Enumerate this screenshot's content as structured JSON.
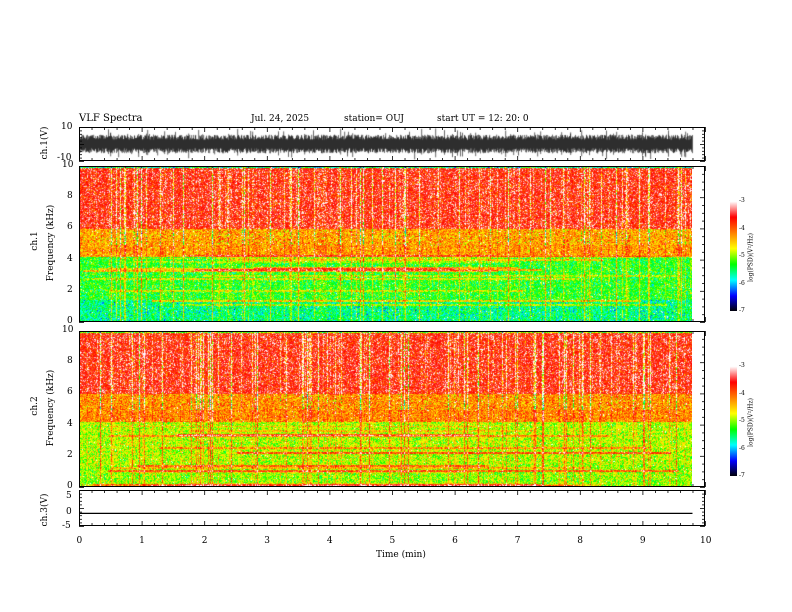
{
  "header": {
    "title": "VLF Spectra",
    "date": "Jul. 24, 2025",
    "station": "station= OUJ",
    "start": "start UT = 12: 20: 0"
  },
  "chart_data": [
    {
      "type": "line",
      "panel": "ch1-waveform",
      "ylabel": "ch.1(V)",
      "ylim": [
        -10,
        10
      ],
      "yticks": [
        "10",
        "-10"
      ],
      "xlim": [
        0,
        9.8
      ],
      "description_values": {
        "baseline": 0,
        "amplitude_range": [
          -9,
          9
        ]
      }
    },
    {
      "type": "heatmap",
      "panel": "ch1-spectrogram",
      "ylabel_top": "ch.1",
      "ylabel": "Frequency (kHz)",
      "ylim": [
        0,
        10
      ],
      "yticks": [
        "0",
        "2",
        "4",
        "6",
        "8",
        "10"
      ],
      "xlim": [
        0,
        9.8
      ],
      "colorbar": {
        "label": "log(PSD)(V²/Hz)",
        "ticks": [
          "-3",
          "-4",
          "-5",
          "-6",
          "-7"
        ],
        "range": [
          -7,
          -3
        ]
      },
      "bands": [
        {
          "f_low": 0,
          "f_high": 1.4,
          "log_psd": -5.6
        },
        {
          "f_low": 1.4,
          "f_high": 4.2,
          "log_psd": -5.3
        },
        {
          "f_low": 4.2,
          "f_high": 6.0,
          "log_psd": -4.3
        },
        {
          "f_low": 6.0,
          "f_high": 10,
          "log_psd": -3.6
        }
      ]
    },
    {
      "type": "heatmap",
      "panel": "ch2-spectrogram",
      "ylabel_top": "ch.2",
      "ylabel": "Frequency (kHz)",
      "ylim": [
        0,
        10
      ],
      "yticks": [
        "0",
        "2",
        "4",
        "6",
        "8",
        "10"
      ],
      "xlim": [
        0,
        9.8
      ],
      "colorbar": {
        "label": "log(PSD)(V²/Hz)",
        "ticks": [
          "-3",
          "-4",
          "-5",
          "-6",
          "-7"
        ],
        "range": [
          -7,
          -3
        ]
      },
      "bands": [
        {
          "f_low": 0,
          "f_high": 1.4,
          "log_psd": -5.0
        },
        {
          "f_low": 1.4,
          "f_high": 4.2,
          "log_psd": -4.9
        },
        {
          "f_low": 4.2,
          "f_high": 6.0,
          "log_psd": -4.2
        },
        {
          "f_low": 6.0,
          "f_high": 10,
          "log_psd": -3.6
        }
      ]
    },
    {
      "type": "line",
      "panel": "ch3-waveform",
      "ylabel": "ch.3(V)",
      "ylim": [
        -5,
        5
      ],
      "yticks": [
        "5",
        "0",
        "-5"
      ],
      "xlim": [
        0,
        9.8
      ],
      "values": {
        "constant": -1.5
      }
    }
  ],
  "xaxis": {
    "label": "Time (min)",
    "xlim": [
      0,
      10
    ],
    "ticks": [
      "0",
      "1",
      "2",
      "3",
      "4",
      "5",
      "6",
      "7",
      "8",
      "9",
      "10"
    ]
  },
  "colors": {
    "background": "#ffffff",
    "axes": "#000000",
    "colormap": [
      "#000000",
      "#0000ff",
      "#00ffff",
      "#00ff00",
      "#ffff00",
      "#ff8000",
      "#ff0000",
      "#ffffff"
    ]
  }
}
